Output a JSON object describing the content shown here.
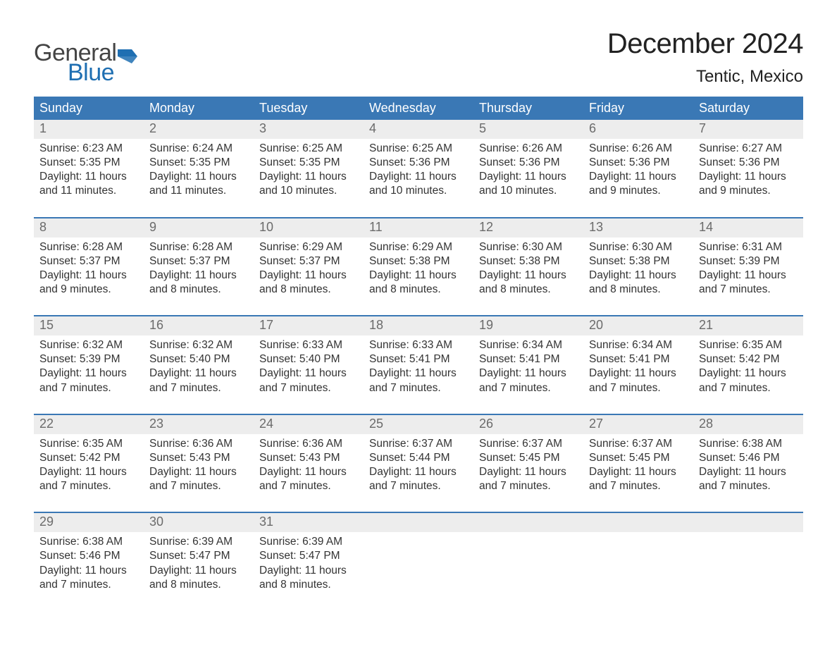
{
  "logo": {
    "text1": "General",
    "text2": "Blue",
    "icon_color": "#1f6fb2",
    "text1_color": "#444444"
  },
  "title": "December 2024",
  "location": "Tentic, Mexico",
  "colors": {
    "header_bg": "#3a78b5",
    "header_text": "#ffffff",
    "daynum_bg": "#ededed",
    "daynum_text": "#6b6b6b",
    "body_text": "#333333",
    "week_border": "#3a78b5",
    "page_bg": "#ffffff"
  },
  "weekdays": [
    "Sunday",
    "Monday",
    "Tuesday",
    "Wednesday",
    "Thursday",
    "Friday",
    "Saturday"
  ],
  "weeks": [
    [
      {
        "n": "1",
        "sunrise": "6:23 AM",
        "sunset": "5:35 PM",
        "daylight": "11 hours and 11 minutes."
      },
      {
        "n": "2",
        "sunrise": "6:24 AM",
        "sunset": "5:35 PM",
        "daylight": "11 hours and 11 minutes."
      },
      {
        "n": "3",
        "sunrise": "6:25 AM",
        "sunset": "5:35 PM",
        "daylight": "11 hours and 10 minutes."
      },
      {
        "n": "4",
        "sunrise": "6:25 AM",
        "sunset": "5:36 PM",
        "daylight": "11 hours and 10 minutes."
      },
      {
        "n": "5",
        "sunrise": "6:26 AM",
        "sunset": "5:36 PM",
        "daylight": "11 hours and 10 minutes."
      },
      {
        "n": "6",
        "sunrise": "6:26 AM",
        "sunset": "5:36 PM",
        "daylight": "11 hours and 9 minutes."
      },
      {
        "n": "7",
        "sunrise": "6:27 AM",
        "sunset": "5:36 PM",
        "daylight": "11 hours and 9 minutes."
      }
    ],
    [
      {
        "n": "8",
        "sunrise": "6:28 AM",
        "sunset": "5:37 PM",
        "daylight": "11 hours and 9 minutes."
      },
      {
        "n": "9",
        "sunrise": "6:28 AM",
        "sunset": "5:37 PM",
        "daylight": "11 hours and 8 minutes."
      },
      {
        "n": "10",
        "sunrise": "6:29 AM",
        "sunset": "5:37 PM",
        "daylight": "11 hours and 8 minutes."
      },
      {
        "n": "11",
        "sunrise": "6:29 AM",
        "sunset": "5:38 PM",
        "daylight": "11 hours and 8 minutes."
      },
      {
        "n": "12",
        "sunrise": "6:30 AM",
        "sunset": "5:38 PM",
        "daylight": "11 hours and 8 minutes."
      },
      {
        "n": "13",
        "sunrise": "6:30 AM",
        "sunset": "5:38 PM",
        "daylight": "11 hours and 8 minutes."
      },
      {
        "n": "14",
        "sunrise": "6:31 AM",
        "sunset": "5:39 PM",
        "daylight": "11 hours and 7 minutes."
      }
    ],
    [
      {
        "n": "15",
        "sunrise": "6:32 AM",
        "sunset": "5:39 PM",
        "daylight": "11 hours and 7 minutes."
      },
      {
        "n": "16",
        "sunrise": "6:32 AM",
        "sunset": "5:40 PM",
        "daylight": "11 hours and 7 minutes."
      },
      {
        "n": "17",
        "sunrise": "6:33 AM",
        "sunset": "5:40 PM",
        "daylight": "11 hours and 7 minutes."
      },
      {
        "n": "18",
        "sunrise": "6:33 AM",
        "sunset": "5:41 PM",
        "daylight": "11 hours and 7 minutes."
      },
      {
        "n": "19",
        "sunrise": "6:34 AM",
        "sunset": "5:41 PM",
        "daylight": "11 hours and 7 minutes."
      },
      {
        "n": "20",
        "sunrise": "6:34 AM",
        "sunset": "5:41 PM",
        "daylight": "11 hours and 7 minutes."
      },
      {
        "n": "21",
        "sunrise": "6:35 AM",
        "sunset": "5:42 PM",
        "daylight": "11 hours and 7 minutes."
      }
    ],
    [
      {
        "n": "22",
        "sunrise": "6:35 AM",
        "sunset": "5:42 PM",
        "daylight": "11 hours and 7 minutes."
      },
      {
        "n": "23",
        "sunrise": "6:36 AM",
        "sunset": "5:43 PM",
        "daylight": "11 hours and 7 minutes."
      },
      {
        "n": "24",
        "sunrise": "6:36 AM",
        "sunset": "5:43 PM",
        "daylight": "11 hours and 7 minutes."
      },
      {
        "n": "25",
        "sunrise": "6:37 AM",
        "sunset": "5:44 PM",
        "daylight": "11 hours and 7 minutes."
      },
      {
        "n": "26",
        "sunrise": "6:37 AM",
        "sunset": "5:45 PM",
        "daylight": "11 hours and 7 minutes."
      },
      {
        "n": "27",
        "sunrise": "6:37 AM",
        "sunset": "5:45 PM",
        "daylight": "11 hours and 7 minutes."
      },
      {
        "n": "28",
        "sunrise": "6:38 AM",
        "sunset": "5:46 PM",
        "daylight": "11 hours and 7 minutes."
      }
    ],
    [
      {
        "n": "29",
        "sunrise": "6:38 AM",
        "sunset": "5:46 PM",
        "daylight": "11 hours and 7 minutes."
      },
      {
        "n": "30",
        "sunrise": "6:39 AM",
        "sunset": "5:47 PM",
        "daylight": "11 hours and 8 minutes."
      },
      {
        "n": "31",
        "sunrise": "6:39 AM",
        "sunset": "5:47 PM",
        "daylight": "11 hours and 8 minutes."
      },
      null,
      null,
      null,
      null
    ]
  ],
  "labels": {
    "sunrise_prefix": "Sunrise: ",
    "sunset_prefix": "Sunset: ",
    "daylight_prefix": "Daylight: "
  }
}
